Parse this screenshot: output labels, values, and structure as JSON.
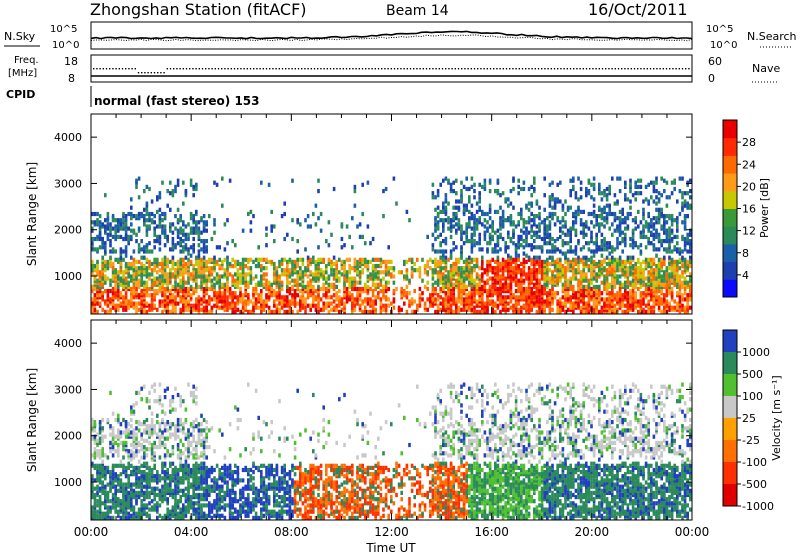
{
  "header": {
    "station": "Zhongshan Station (fitACF)",
    "beam": "Beam 14",
    "date": "16/Oct/2011"
  },
  "noise_panel": {
    "left_label": "N.Sky",
    "right_label": "N.Search",
    "ticks": [
      "10^5",
      "10^0"
    ],
    "ylim": [
      1,
      100000
    ],
    "scale": "log"
  },
  "freq_panel": {
    "left_label_1": "Freq.",
    "left_label_2": "[MHz]",
    "left_ticks": [
      "18",
      "8"
    ],
    "right_label": "Nave",
    "right_ticks": [
      "60",
      "0"
    ]
  },
  "cpid": {
    "label": "CPID",
    "text": "normal (fast stereo) 153"
  },
  "chart_data": [
    {
      "type": "heatmap",
      "title": "",
      "xlabel": "Time UT",
      "ylabel": "Slant Range [km]",
      "x_ticks": [
        "00:00",
        "04:00",
        "08:00",
        "12:00",
        "16:00",
        "20:00",
        "00:00"
      ],
      "y_ticks": [
        "1000",
        "2000",
        "3000",
        "4000"
      ],
      "xlim_hours": [
        0,
        24
      ],
      "ylim_km": [
        180,
        4500
      ],
      "colorbar": {
        "label": "Power [dB]",
        "ticks": [
          "4",
          "8",
          "12",
          "16",
          "20",
          "24",
          "28"
        ],
        "range": [
          0,
          32
        ],
        "colors": [
          "#0a0aff",
          "#1d3fb0",
          "#1a5fa8",
          "#2a8a5a",
          "#3a9a3a",
          "#c8c800",
          "#ff9a1a",
          "#ff6a00",
          "#ff2a00",
          "#e80000"
        ]
      }
    },
    {
      "type": "heatmap",
      "title": "",
      "xlabel": "Time UT",
      "ylabel": "Slant Range [km]",
      "x_ticks": [
        "00:00",
        "04:00",
        "08:00",
        "12:00",
        "16:00",
        "20:00",
        "00:00"
      ],
      "y_ticks": [
        "1000",
        "2000",
        "3000",
        "4000"
      ],
      "xlim_hours": [
        0,
        24
      ],
      "ylim_km": [
        180,
        4500
      ],
      "colorbar": {
        "label": "Velocity [m s⁻¹]",
        "ticks": [
          "1000",
          "500",
          "100",
          "25",
          "-25",
          "-100",
          "-500",
          "-1000"
        ],
        "colors": [
          "#2040c0",
          "#2a8a5a",
          "#50c030",
          "#c8c8c8",
          "#ffa000",
          "#ff7000",
          "#ff3000",
          "#e00000"
        ]
      }
    }
  ]
}
